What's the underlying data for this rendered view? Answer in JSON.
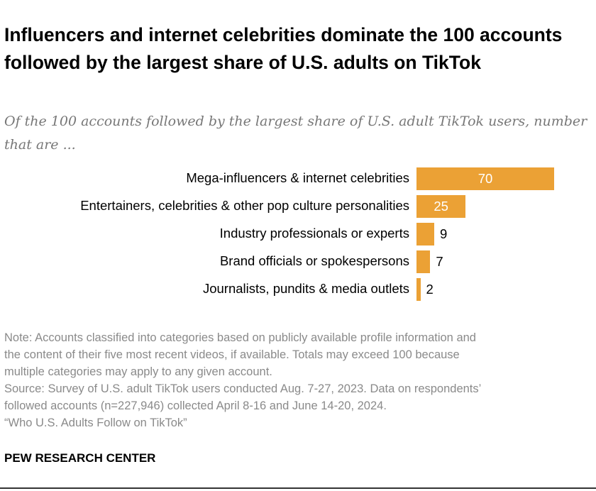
{
  "title": "Influencers and internet celebrities dominate the 100 accounts followed by the largest share of U.S. adults on TikTok",
  "subtitle": "Of the 100 accounts followed by the largest share of U.S. adult TikTok users, number that are ...",
  "chart_data": {
    "type": "bar",
    "orientation": "horizontal",
    "categories": [
      "Mega-influencers & internet celebrities",
      "Entertainers, celebrities & other pop culture personalities",
      "Industry professionals or experts",
      "Brand officials or spokespersons",
      "Journalists, pundits & media outlets"
    ],
    "values": [
      70,
      25,
      9,
      7,
      2
    ],
    "labels": [
      "70",
      "25",
      "9",
      "7",
      "2"
    ],
    "xlim": [
      0,
      100
    ],
    "bar_color": "#eba135",
    "grid": false
  },
  "note": {
    "lines": [
      "Note: Accounts classified into categories based on publicly available profile information and",
      "the content of their five most recent videos, if available. Totals may exceed 100 because",
      "multiple categories may apply to any given account.",
      "Source: Survey of U.S. adult TikTok users conducted Aug. 7-27, 2023. Data on respondents’",
      "followed accounts (n=227,946) collected April 8-16 and June 14-20, 2024.",
      "“Who U.S. Adults Follow on TikTok”"
    ]
  },
  "brand": "PEW RESEARCH CENTER"
}
